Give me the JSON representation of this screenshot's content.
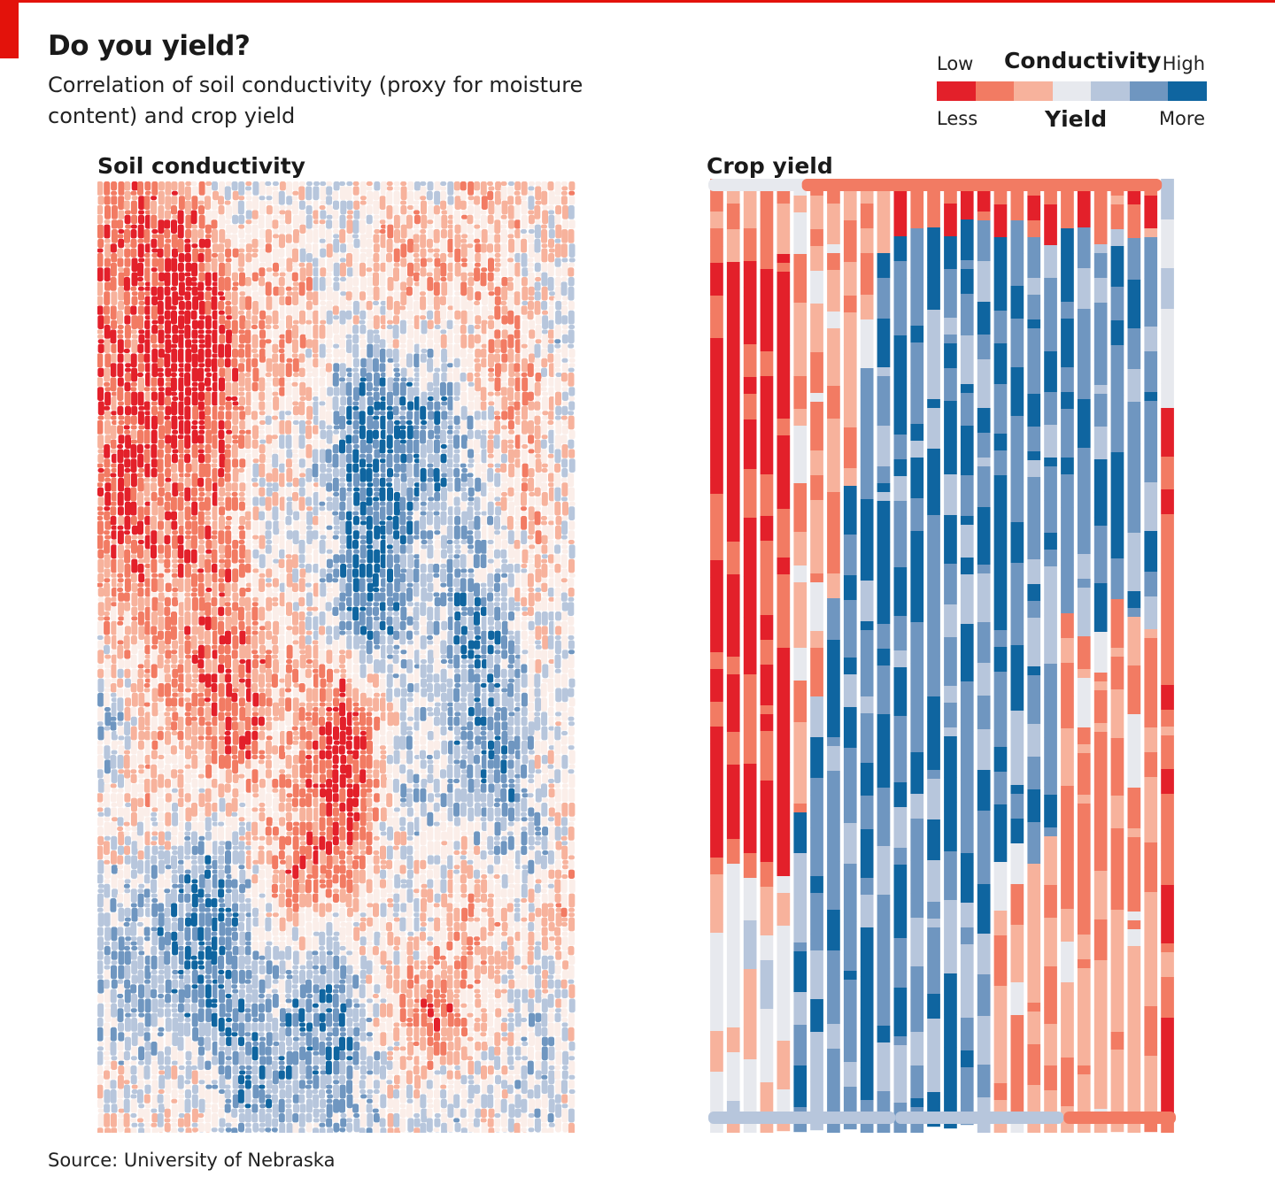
{
  "header": {
    "title": "Do you yield?",
    "subtitle": "Correlation of soil conductivity (proxy for moisture content) and crop yield"
  },
  "legend": {
    "low": "Low",
    "high": "High",
    "conductivity": "Conductivity",
    "less": "Less",
    "more": "More",
    "yield": "Yield",
    "colors": [
      "#e3202a",
      "#f27b63",
      "#f7b29c",
      "#e7e9ee",
      "#b7c6dc",
      "#6f96c0",
      "#0f65a0"
    ]
  },
  "chart_data": [
    {
      "type": "heatmap",
      "title": "Soil conductivity",
      "scale": [
        "Low",
        "High"
      ],
      "description_colors": [
        "#e3202a",
        "#f27b63",
        "#f7b29c",
        "#fbeee9",
        "#b7c6dc",
        "#6f96c0",
        "#0f65a0"
      ]
    },
    {
      "type": "heatmap",
      "title": "Crop yield",
      "scale": [
        "Less",
        "More"
      ],
      "description_colors": [
        "#e3202a",
        "#f27b63",
        "#f7b29c",
        "#e7e9ee",
        "#b7c6dc",
        "#6f96c0",
        "#0f65a0"
      ]
    }
  ],
  "footer": {
    "source": "Source: University of Nebraska"
  }
}
